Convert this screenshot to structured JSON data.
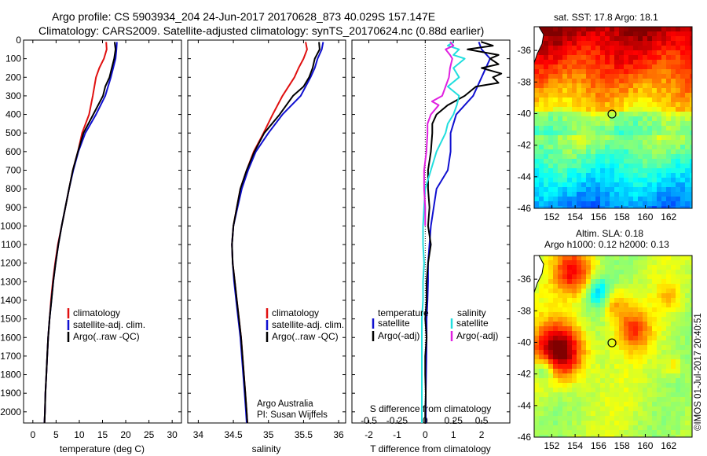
{
  "header": {
    "line1": "Argo profile: CS 5903934_204 24-Jun-2017 20170628_873 40.029S 157.147E",
    "line2": "Climatology: CARS2009. Satellite-adjusted climatology: synTS_20170624.nc (0.88d earlier)"
  },
  "colors": {
    "climatology": "#e01010",
    "satellite": "#1010d0",
    "argo": "#000000",
    "sal_satellite": "#20dede",
    "sal_argo": "#e020e0"
  },
  "legend": {
    "climatology": "climatology",
    "satellite_adj": "satellite-adj. clim.",
    "argo_raw": "Argo(..raw -QC)",
    "temperature_header": "temperature",
    "salinity_header": "salinity",
    "satellite": "satellite",
    "argo_adj": "Argo(-adj)"
  },
  "credits": {
    "line1": "Argo Australia",
    "line2": "PI: Susan Wijffels"
  },
  "stamp": "©IMOS 01-Jul-2017 20:40:51",
  "maps": {
    "sst_title": "sat. SST: 17.8 Argo: 18.1",
    "sla_title1": "Altim. SLA: 0.18",
    "sla_title2": "Argo h1000: 0.12 h2000: 0.13"
  },
  "chart_data": [
    {
      "type": "line",
      "panel": "temperature",
      "xlabel": "temperature (deg C)",
      "xticks": [
        "0",
        "5",
        "10",
        "15",
        "20",
        "25",
        "30"
      ],
      "xlim": [
        -2,
        32
      ],
      "ylim": [
        2060,
        0
      ],
      "yticks": [
        "0",
        "100",
        "200",
        "300",
        "400",
        "500",
        "600",
        "700",
        "800",
        "900",
        "1000",
        "1100",
        "1200",
        "1300",
        "1400",
        "1500",
        "1600",
        "1700",
        "1800",
        "1900",
        "2000"
      ],
      "series": [
        {
          "name": "climatology",
          "color": "#e01010",
          "y": [
            10,
            50,
            100,
            150,
            200,
            300,
            400,
            500,
            600,
            700,
            800,
            900,
            1000,
            1100,
            1200,
            1300,
            1400,
            1500,
            1600,
            1700,
            1800,
            1900,
            2000,
            2060
          ],
          "x": [
            15.8,
            15.9,
            15.3,
            14.3,
            13.6,
            12.9,
            12.1,
            10.6,
            9.7,
            8.6,
            7.8,
            7.0,
            6.2,
            5.4,
            4.8,
            4.3,
            3.9,
            3.6,
            3.3,
            3.1,
            2.9,
            2.7,
            2.6,
            2.5
          ]
        },
        {
          "name": "satellite-adj. clim.",
          "color": "#1010d0",
          "y": [
            10,
            50,
            100,
            150,
            200,
            300,
            400,
            500,
            600,
            700,
            800,
            900,
            1000,
            1100,
            1200,
            1300,
            1400,
            1500,
            1600,
            1700,
            1800,
            1900,
            2000,
            2060
          ],
          "x": [
            18.1,
            18.0,
            17.8,
            17.3,
            16.8,
            15.6,
            13.6,
            11.3,
            9.8,
            8.7,
            7.8,
            7.0,
            6.2,
            5.5,
            4.9,
            4.4,
            4.0,
            3.6,
            3.3,
            3.1,
            2.9,
            2.7,
            2.6,
            2.5
          ]
        },
        {
          "name": "Argo(..raw -QC)",
          "color": "#000000",
          "y": [
            10,
            50,
            100,
            150,
            200,
            250,
            300,
            400,
            500,
            600,
            700,
            800,
            900,
            1000,
            1100,
            1200,
            1300,
            1400,
            1500,
            1600,
            1700,
            1800,
            1900,
            2000,
            2060
          ],
          "x": [
            17.6,
            17.8,
            17.5,
            17.0,
            16.5,
            15.6,
            15.1,
            13.0,
            10.9,
            9.7,
            8.6,
            7.8,
            7.0,
            6.2,
            5.5,
            4.9,
            4.4,
            4.0,
            3.6,
            3.3,
            3.1,
            2.9,
            2.7,
            2.6,
            2.5
          ]
        }
      ]
    },
    {
      "type": "line",
      "panel": "salinity",
      "xlabel": "salinity",
      "xticks": [
        "34",
        "34.5",
        "35",
        "35.5",
        "36"
      ],
      "xlim": [
        33.85,
        36.1
      ],
      "ylim": [
        2060,
        0
      ],
      "series": [
        {
          "name": "climatology",
          "color": "#e01010",
          "y": [
            10,
            50,
            100,
            150,
            200,
            300,
            400,
            500,
            600,
            700,
            800,
            900,
            1000,
            1100,
            1200,
            1300,
            1400,
            1500,
            1600,
            1700,
            1800,
            1900,
            2000,
            2060
          ],
          "x": [
            35.53,
            35.55,
            35.5,
            35.43,
            35.37,
            35.2,
            35.06,
            34.93,
            34.79,
            34.69,
            34.6,
            34.55,
            34.5,
            34.48,
            34.49,
            34.52,
            34.55,
            34.58,
            34.61,
            34.63,
            34.65,
            34.67,
            34.69,
            34.7
          ]
        },
        {
          "name": "satellite-adj. clim.",
          "color": "#1010d0",
          "y": [
            10,
            50,
            100,
            150,
            200,
            300,
            400,
            500,
            600,
            700,
            800,
            900,
            1000,
            1100,
            1200,
            1300,
            1400,
            1500,
            1600,
            1700,
            1800,
            1900,
            2000,
            2060
          ],
          "x": [
            35.78,
            35.76,
            35.7,
            35.66,
            35.6,
            35.46,
            35.2,
            35.0,
            34.82,
            34.71,
            34.62,
            34.56,
            34.5,
            34.48,
            34.49,
            34.51,
            34.54,
            34.57,
            34.6,
            34.62,
            34.64,
            34.66,
            34.68,
            34.69
          ]
        },
        {
          "name": "Argo(..raw -QC)",
          "color": "#000000",
          "y": [
            10,
            50,
            100,
            150,
            200,
            250,
            300,
            400,
            500,
            600,
            700,
            800,
            900,
            1000,
            1100,
            1200,
            1300,
            1400,
            1500,
            1600,
            1700,
            1800,
            1900,
            2000,
            2060
          ],
          "x": [
            35.72,
            35.73,
            35.66,
            35.63,
            35.58,
            35.5,
            35.35,
            35.16,
            34.94,
            34.8,
            34.69,
            34.6,
            34.55,
            34.5,
            34.48,
            34.49,
            34.52,
            34.55,
            34.58,
            34.61,
            34.63,
            34.65,
            34.67,
            34.69,
            34.7
          ]
        }
      ]
    },
    {
      "type": "line",
      "panel": "difference",
      "xlabel": "T difference from climatology",
      "xlabel_top": "S difference from climatology",
      "xticks": [
        "-2",
        "-1",
        "0",
        "1",
        "2"
      ],
      "xticks_top": [
        "-0.5",
        "-0.25",
        "0",
        "0.25",
        "0.5"
      ],
      "xlim": [
        -2.6,
        3.0
      ],
      "ylim": [
        2060,
        0
      ],
      "series": [
        {
          "name": "temperature satellite",
          "color": "#1010d0",
          "y": [
            10,
            50,
            100,
            200,
            300,
            400,
            500,
            600,
            700,
            800,
            900,
            1000,
            1100,
            1200,
            1300,
            1400,
            1500,
            1600,
            1700,
            1800,
            1900,
            2000,
            2060
          ],
          "x": [
            1.9,
            2.0,
            2.3,
            2.0,
            1.7,
            1.1,
            0.9,
            0.9,
            0.8,
            0.4,
            0.3,
            0.2,
            0.15,
            0.1,
            0.1,
            0.08,
            0.05,
            0.05,
            0.04,
            0.03,
            0.02,
            0.02,
            0.02
          ]
        },
        {
          "name": "temperature Argo(-adj)",
          "color": "#000000",
          "y": [
            10,
            30,
            50,
            80,
            100,
            130,
            150,
            180,
            200,
            230,
            250,
            300,
            350,
            400,
            450,
            500,
            600,
            700,
            800,
            900,
            1000,
            1100,
            1200,
            1300,
            1400,
            1500,
            1600,
            1700,
            1800,
            1900,
            2000,
            2060
          ],
          "x": [
            2.0,
            2.4,
            1.5,
            2.6,
            2.3,
            2.6,
            2.0,
            2.7,
            2.4,
            2.6,
            1.8,
            1.4,
            0.8,
            0.4,
            0.25,
            0.25,
            0.2,
            0.1,
            0.1,
            0.15,
            0.1,
            0.2,
            0.1,
            0.05,
            0.05,
            0.0,
            0.05,
            0.0,
            0.0,
            0.02,
            0.0,
            0.0
          ]
        },
        {
          "name": "salinity satellite",
          "color": "#20dede",
          "y": [
            10,
            30,
            50,
            80,
            100,
            150,
            200,
            250,
            300,
            350,
            400,
            450,
            500,
            600,
            700,
            800,
            900,
            1000,
            1100,
            1200,
            1300,
            1400,
            1500,
            1600,
            1700,
            1800,
            1900,
            2000,
            2060
          ],
          "x": [
            0.25,
            0.2,
            0.3,
            0.25,
            0.35,
            0.25,
            0.3,
            0.2,
            0.3,
            0.28,
            0.25,
            0.2,
            0.18,
            0.1,
            0.05,
            0.0,
            -0.01,
            -0.02,
            -0.02,
            -0.01,
            -0.02,
            -0.02,
            -0.03,
            -0.03,
            -0.03,
            -0.03,
            -0.03,
            -0.03,
            -0.03
          ]
        },
        {
          "name": "salinity Argo(-adj)",
          "color": "#e020e0",
          "y": [
            10,
            30,
            50,
            80,
            100,
            150,
            200,
            250,
            300,
            330,
            350,
            400,
            450,
            500,
            600,
            700,
            800,
            900,
            1000
          ],
          "x": [
            0.22,
            0.25,
            0.18,
            0.22,
            0.24,
            0.22,
            0.21,
            0.18,
            0.15,
            0.06,
            0.12,
            0.05,
            0.02,
            0.02,
            0.01,
            -0.01,
            -0.01,
            0.0,
            0.0
          ]
        }
      ]
    },
    {
      "type": "heatmap",
      "panel": "sst-map",
      "xticks": [
        "152",
        "154",
        "156",
        "158",
        "160",
        "162"
      ],
      "yticks": [
        "-36",
        "-38",
        "-40",
        "-42",
        "-44",
        "-46"
      ],
      "xlim": [
        150.5,
        164
      ],
      "ylim": [
        -46,
        -34.5
      ],
      "marker": {
        "lon": 157.15,
        "lat": -40.03
      }
    },
    {
      "type": "heatmap",
      "panel": "sla-map",
      "xticks": [
        "152",
        "154",
        "156",
        "158",
        "160",
        "162"
      ],
      "yticks": [
        "-36",
        "-38",
        "-40",
        "-42",
        "-44",
        "-46"
      ],
      "xlim": [
        150.5,
        164
      ],
      "ylim": [
        -46,
        -34.5
      ],
      "marker": {
        "lon": 157.15,
        "lat": -40.03
      }
    }
  ]
}
